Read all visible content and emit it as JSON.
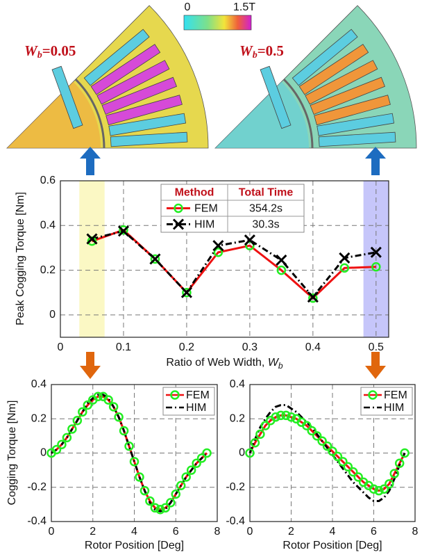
{
  "images": {
    "colorbar": {
      "range": [
        0,
        1.5
      ],
      "ticks": [
        0,
        {
          "value": 1.5,
          "label": "1.5T"
        }
      ]
    },
    "labels": [
      {
        "symbol": "W",
        "subscript": "b",
        "text": "=0.05"
      },
      {
        "symbol": "W",
        "subscript": "b",
        "text": "=0.5"
      }
    ]
  },
  "chart_data": [
    {
      "type": "line",
      "ylabel": "Peak Cogging Torque [Nm]",
      "xlabel": {
        "text": "Ratio of Web Width, ",
        "symbol": "W",
        "subscript": "b"
      },
      "x": [
        0.05,
        0.1,
        0.15,
        0.2,
        0.25,
        0.3,
        0.35,
        0.4,
        0.45,
        0.5
      ],
      "series": [
        {
          "name": "FEM",
          "color": "#ee1111",
          "marker": "o",
          "marker_color": "#22ee22",
          "line_style": "solid",
          "values": [
            0.33,
            0.38,
            0.25,
            0.1,
            0.28,
            0.31,
            0.2,
            0.075,
            0.21,
            0.215
          ]
        },
        {
          "name": "HIM",
          "color": "#000000",
          "marker": "x",
          "marker_color": "#000000",
          "line_style": "dashdot",
          "values": [
            0.34,
            0.375,
            0.25,
            0.1,
            0.31,
            0.335,
            0.245,
            0.08,
            0.255,
            0.28
          ]
        }
      ],
      "xlim": [
        0,
        0.52
      ],
      "ylim": [
        -0.1,
        0.6
      ],
      "xticks": [
        0,
        0.1,
        0.2,
        0.3,
        0.4,
        0.5
      ],
      "yticks": [
        0,
        0.2,
        0.4,
        0.6
      ],
      "grid": true,
      "highlights": [
        {
          "range": [
            0.03,
            0.07
          ],
          "color": "#fbf8c4"
        },
        {
          "range": [
            0.48,
            0.52
          ],
          "color": "#c6c6fa"
        }
      ],
      "legend_table": {
        "headers": [
          "Method",
          "Total Time"
        ],
        "times": [
          "354.2s",
          "30.3s"
        ]
      }
    },
    {
      "type": "line",
      "ylabel": "Cogging Torque [Nm]",
      "xlabel": "Rotor Position [Deg]",
      "x": [
        0,
        0.25,
        0.5,
        0.75,
        1,
        1.25,
        1.5,
        1.75,
        2,
        2.25,
        2.5,
        2.75,
        3,
        3.25,
        3.5,
        3.75,
        4,
        4.25,
        4.5,
        4.75,
        5,
        5.25,
        5.5,
        5.75,
        6,
        6.25,
        6.5,
        6.75,
        7,
        7.25,
        7.5
      ],
      "series": [
        {
          "name": "FEM",
          "color": "#ee1111",
          "marker": "o",
          "marker_color": "#22ee22",
          "line_style": "solid",
          "values": [
            0,
            0.02,
            0.05,
            0.09,
            0.14,
            0.19,
            0.24,
            0.28,
            0.31,
            0.33,
            0.33,
            0.31,
            0.27,
            0.21,
            0.13,
            0.04,
            -0.05,
            -0.14,
            -0.22,
            -0.28,
            -0.32,
            -0.33,
            -0.32,
            -0.29,
            -0.24,
            -0.19,
            -0.14,
            -0.1,
            -0.06,
            -0.03,
            0
          ]
        },
        {
          "name": "HIM",
          "color": "#000000",
          "line_style": "dashdot",
          "values": [
            0,
            0.02,
            0.05,
            0.09,
            0.14,
            0.19,
            0.24,
            0.29,
            0.32,
            0.34,
            0.34,
            0.32,
            0.27,
            0.21,
            0.13,
            0.04,
            -0.05,
            -0.14,
            -0.22,
            -0.29,
            -0.33,
            -0.34,
            -0.33,
            -0.29,
            -0.24,
            -0.19,
            -0.14,
            -0.1,
            -0.06,
            -0.03,
            0
          ]
        }
      ],
      "xlim": [
        0,
        8
      ],
      "ylim": [
        -0.4,
        0.4
      ],
      "xticks": [
        0,
        2,
        4,
        6,
        8
      ],
      "yticks": [
        -0.4,
        -0.2,
        0,
        0.2,
        0.4
      ],
      "grid": true,
      "legend": "upper right"
    },
    {
      "type": "line",
      "xlabel": "Rotor Position [Deg]",
      "x": [
        0,
        0.25,
        0.5,
        0.75,
        1,
        1.25,
        1.5,
        1.75,
        2,
        2.25,
        2.5,
        2.75,
        3,
        3.25,
        3.5,
        3.75,
        4,
        4.25,
        4.5,
        4.75,
        5,
        5.25,
        5.5,
        5.75,
        6,
        6.25,
        6.5,
        6.75,
        7,
        7.25,
        7.5
      ],
      "series": [
        {
          "name": "FEM",
          "color": "#ee1111",
          "marker": "o",
          "marker_color": "#22ee22",
          "line_style": "solid",
          "values": [
            0,
            0.06,
            0.11,
            0.16,
            0.19,
            0.21,
            0.22,
            0.22,
            0.21,
            0.2,
            0.18,
            0.16,
            0.13,
            0.1,
            0.07,
            0.04,
            0.01,
            -0.02,
            -0.05,
            -0.08,
            -0.11,
            -0.14,
            -0.17,
            -0.19,
            -0.21,
            -0.22,
            -0.21,
            -0.18,
            -0.12,
            -0.06,
            0
          ]
        },
        {
          "name": "HIM",
          "color": "#000000",
          "line_style": "dashdot",
          "values": [
            0,
            0.08,
            0.15,
            0.2,
            0.24,
            0.27,
            0.28,
            0.28,
            0.26,
            0.24,
            0.21,
            0.18,
            0.15,
            0.11,
            0.07,
            0.03,
            -0.01,
            -0.05,
            -0.09,
            -0.13,
            -0.17,
            -0.2,
            -0.23,
            -0.26,
            -0.28,
            -0.28,
            -0.26,
            -0.22,
            -0.15,
            -0.07,
            0
          ]
        }
      ],
      "xlim": [
        0,
        8
      ],
      "ylim": [
        -0.4,
        0.4
      ],
      "xticks": [
        0,
        2,
        4,
        6,
        8
      ],
      "yticks": [
        -0.4,
        -0.2,
        0,
        0.2,
        0.4
      ],
      "grid": true,
      "legend": "upper right"
    }
  ]
}
